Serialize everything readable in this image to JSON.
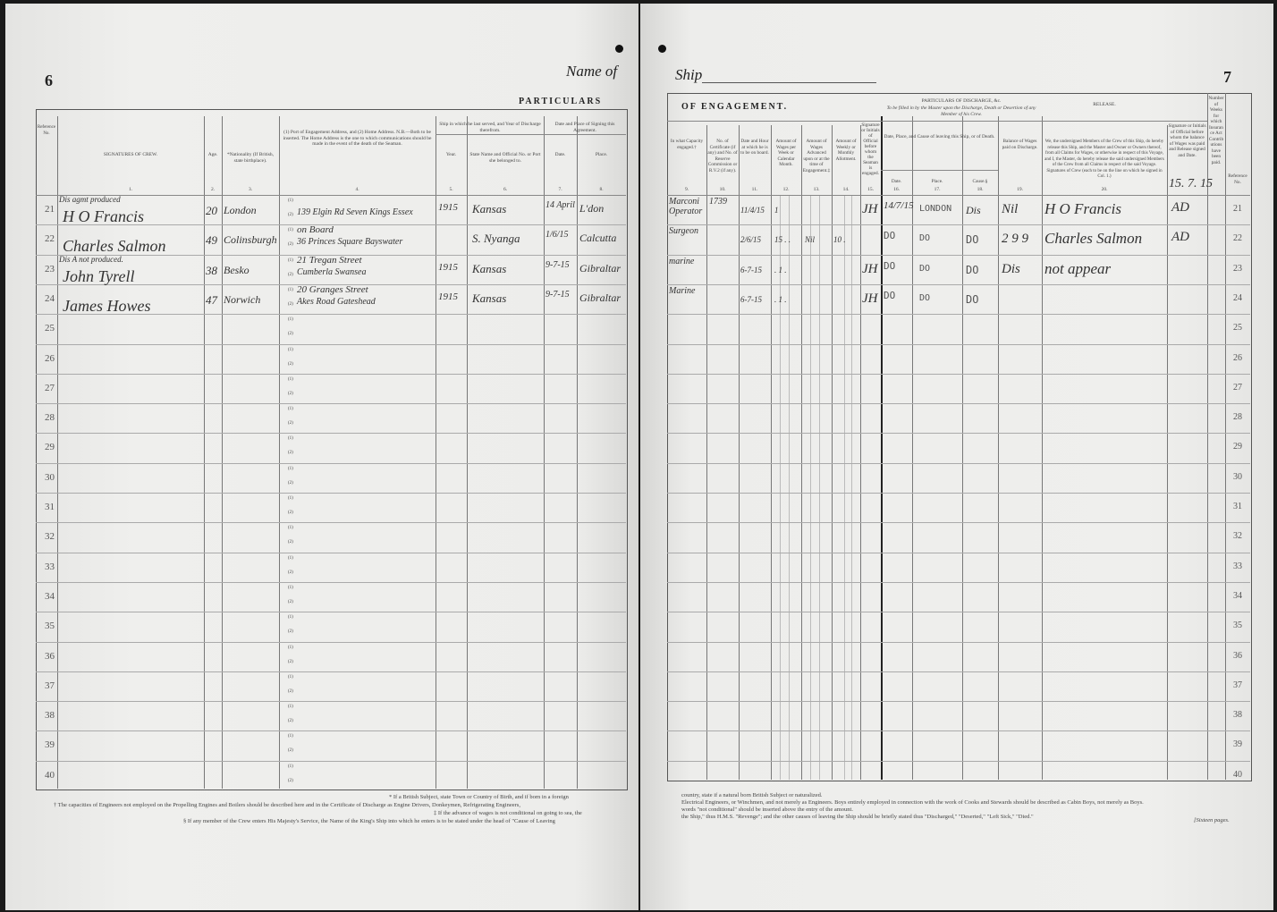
{
  "left_page": {
    "page_number": "6",
    "heading": "Name of",
    "section_title": "PARTICULARS",
    "columns": [
      {
        "label": "Reference No.",
        "num": ""
      },
      {
        "label": "SIGNATURES OF CREW.",
        "num": "1."
      },
      {
        "label": "Age.",
        "num": "2."
      },
      {
        "label": "*Nationality (If British, state birthplace).",
        "num": "3."
      },
      {
        "label": "(1) Port of Engagement Address, and (2) Home Address. N.B.—Both to be inserted. The Home Address is the one to which communications should be made in the event of the death of the Seaman.",
        "num": "4."
      },
      {
        "label": "Year.",
        "num": "5."
      },
      {
        "label": "State Name and Official No. or Port she belonged to.",
        "num": "6."
      },
      {
        "label": "Date.",
        "num": "7."
      },
      {
        "label": "Place.",
        "num": "8."
      }
    ],
    "group_headers": {
      "last_ship": "Ship in which he last served, and Year of Discharge therefrom.",
      "signing": "Date and Place of Signing this Agreement."
    },
    "footnotes": [
      "* If a British Subject, state Town or Country of Birth, and if born in a foreign",
      "† The capacities of Engineers not employed on the Propelling Engines and Boilers should be described here and in the Certificate of Discharge as Engine Drivers, Donkeymen, Refrigerating Engineers,",
      "‡ If the advance of wages is not conditional on going to sea, the",
      "§ If any member of the Crew enters His Majesty's Service, the Name of the King's Ship into which he enters is to be stated under the head of \"Cause of Leaving"
    ]
  },
  "right_page": {
    "page_number": "7",
    "heading": "Ship",
    "section_title": "OF ENGAGEMENT.",
    "columns": [
      {
        "label": "In what Capacity engaged.†",
        "num": "9."
      },
      {
        "label": "No. of Certificate (if any) and No. of Reserve Commission or R.V.2 (if any).",
        "num": "10."
      },
      {
        "label": "Date and Hour at which he is to be on board.",
        "num": "11."
      },
      {
        "label": "Amount of Wages per Week or Calendar Month.",
        "num": "12."
      },
      {
        "label": "Amount of Wages Advanced upon or at the time of Engagement.‡",
        "num": "13."
      },
      {
        "label": "Amount of Weekly or Monthly Allotment.",
        "num": "14."
      },
      {
        "label": "Signature or Initials of Official before whom the Seaman is engaged.",
        "num": "15."
      },
      {
        "label": "Date.",
        "num": "16."
      },
      {
        "label": "Place.",
        "num": "17."
      },
      {
        "label": "Cause.§",
        "num": "18."
      },
      {
        "label": "Balance of Wages paid on Discharge.",
        "num": "19."
      },
      {
        "label": "We, the undersigned Members of the Crew of this Ship, do hereby release this Ship, and the Master and Owner or Owners thereof, from all Claims for Wages, or otherwise in respect of this Voyage, and I, the Master, do hereby release the said undersigned Members of the Crew from all Claims in respect of the said Voyage. Signatures of Crew (each to be on the line on which he signed in Col. 1.)",
        "num": "20."
      },
      {
        "label": "Signature or Initials of Official before whom the balance of Wages was paid and Release signed and Date.",
        "num": ""
      },
      {
        "label": "Number of Weeks for which Insurance Act Contributions have been paid.",
        "num": ""
      },
      {
        "label": "Reference No.",
        "num": ""
      }
    ],
    "group_headers": {
      "discharge": "PARTICULARS OF DISCHARGE, &c.",
      "discharge_note": "To be filled in by the Master upon the Discharge, Death or Desertion of any Member of his Crew.",
      "leaving": "Date, Place, and Cause of leaving this Ship, or of Death.",
      "release": "RELEASE."
    },
    "release_date_note": "15. 7. 15",
    "footnotes": [
      "country, state if a natural born British Subject or naturalized.",
      "Electrical Engineers, or Winchmen, and not merely as Engineers.   Boys entirely employed in connection with the work of Cooks and Stewards should be described as Cabin Boys, not merely as Boys.",
      "words \"not conditional\" should be inserted above the entry of the amount.",
      "the Ship,\" thus H.M.S. \"Revenge\"; and the other causes of leaving the Ship should be briefly stated thus \"Discharged,\" \"Deserted,\" \"Left Sick,\" \"Died.\""
    ],
    "pages_note": "[Sixteen pages."
  },
  "reference_numbers": [
    "21",
    "22",
    "23",
    "24",
    "25",
    "26",
    "27",
    "28",
    "29",
    "30",
    "31",
    "32",
    "33",
    "34",
    "35",
    "36",
    "37",
    "38",
    "39",
    "40"
  ],
  "address_markers": [
    "(1)",
    "(2)"
  ],
  "entries": [
    {
      "ref": "21",
      "note": "Dis agmt produced",
      "signature": "H O Francis",
      "age": "20",
      "nationality": "London",
      "address1": "",
      "address2": "139 Elgin Rd Seven Kings Essex",
      "year": "1915",
      "ship": "Kansas",
      "date": "14 April",
      "place": "L'don",
      "capacity": "Marconi Operator",
      "certificate": "1739",
      "on_board": "11/4/15",
      "wages": "1",
      "advanced": "",
      "allotment": "",
      "official": "JH",
      "dis_date": "14/7/15",
      "dis_place": "LONDON",
      "cause": "Dis",
      "balance": "Nil",
      "release_sig": "H O Francis",
      "release_official": "AD"
    },
    {
      "ref": "22",
      "note": "",
      "signature": "Charles Salmon",
      "age": "49",
      "nationality": "Colinsburgh",
      "address1": "on Board",
      "address2": "36 Princes Square Bayswater",
      "year": "",
      "ship": "S. Nyanga",
      "date": "1/6/15",
      "place": "Calcutta",
      "capacity": "Surgeon",
      "certificate": "",
      "on_board": "2/6/15",
      "wages": "15 . .",
      "advanced": "Nil",
      "allotment": "10 .",
      "official": "",
      "dis_date": "DO",
      "dis_place": "DO",
      "cause": "DO",
      "balance": "2 9 9",
      "release_sig": "Charles Salmon",
      "release_official": "AD"
    },
    {
      "ref": "23",
      "note": "Dis A not produced.",
      "signature": "John Tyrell",
      "age": "38",
      "nationality": "Besko",
      "address1": "21 Tregan Street",
      "address2": "Cumberla Swansea",
      "year": "1915",
      "ship": "Kansas",
      "date": "9-7-15",
      "place": "Gibraltar",
      "capacity": "marine",
      "certificate": "",
      "on_board": "6-7-15",
      "wages": ". 1 .",
      "advanced": "",
      "allotment": "",
      "official": "JH",
      "dis_date": "DO",
      "dis_place": "DO",
      "cause": "DO",
      "balance": "Dis",
      "release_sig": "not appear",
      "release_official": ""
    },
    {
      "ref": "24",
      "note": "",
      "signature": "James Howes",
      "age": "47",
      "nationality": "Norwich",
      "address1": "20 Granges Street",
      "address2": "Akes Road Gateshead",
      "year": "1915",
      "ship": "Kansas",
      "date": "9-7-15",
      "place": "Gibraltar",
      "capacity": "Marine",
      "certificate": "",
      "on_board": "6-7-15",
      "wages": ". 1 .",
      "advanced": "",
      "allotment": "",
      "official": "JH",
      "dis_date": "DO",
      "dis_place": "DO",
      "cause": "DO",
      "balance": "",
      "release_sig": "",
      "release_official": ""
    }
  ],
  "colors": {
    "paper": "#ececea",
    "ink": "#333333",
    "background": "#1a1a1a"
  }
}
